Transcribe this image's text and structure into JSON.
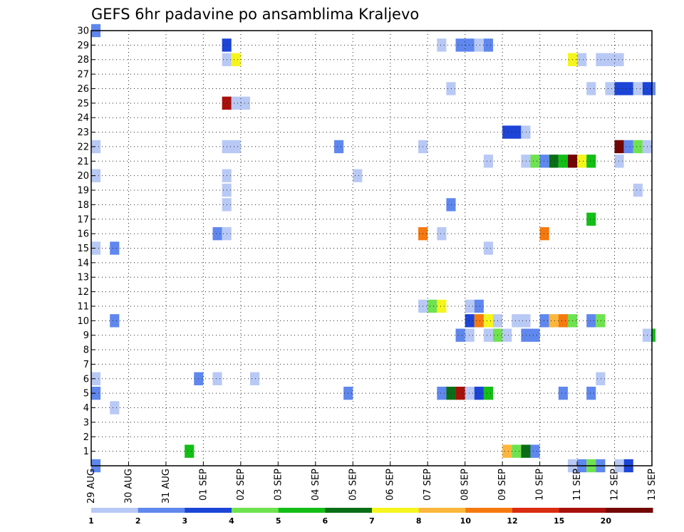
{
  "chart_data": {
    "type": "heatmap",
    "title": "GEFS 6hr padavine po ansamblima Kraljevo",
    "xlabel": "",
    "ylabel": "",
    "x_tick_labels": [
      "29 AUG",
      "30 AUG",
      "31 AUG",
      "01 SEP",
      "02 SEP",
      "03 SEP",
      "04 SEP",
      "05 SEP",
      "06 SEP",
      "07 SEP",
      "08 SEP",
      "09 SEP",
      "10 SEP",
      "11 SEP",
      "12 SEP",
      "13 SEP"
    ],
    "x_range_days": [
      0,
      15
    ],
    "y_tick_labels": [
      "1",
      "2",
      "3",
      "4",
      "5",
      "6",
      "7",
      "8",
      "9",
      "10",
      "11",
      "12",
      "13",
      "14",
      "15",
      "16",
      "17",
      "18",
      "19",
      "20",
      "21",
      "22",
      "23",
      "24",
      "25",
      "26",
      "27",
      "28",
      "29",
      "30"
    ],
    "y_range": [
      0,
      30
    ],
    "grid": true,
    "legend_placement": "bottom",
    "colorbar": {
      "labels": [
        "1",
        "2",
        "3",
        "4",
        "5",
        "6",
        "7",
        "8",
        "10",
        "12",
        "15",
        "20"
      ],
      "colors": [
        "#b9c9f5",
        "#5f87ee",
        "#1c44d6",
        "#6fe24f",
        "#13be16",
        "#0a6e16",
        "#f5f51d",
        "#fbb73c",
        "#f5790f",
        "#d92c10",
        "#a7100b",
        "#730505"
      ]
    },
    "cell_width_steps": 0.25,
    "cells": [
      {
        "m": 30,
        "t": 0.0,
        "n": 1,
        "c": 1
      },
      {
        "m": 29,
        "t": 3.5,
        "n": 1,
        "c": 2
      },
      {
        "m": 29,
        "t": 9.25,
        "n": 1,
        "c": 0
      },
      {
        "m": 29,
        "t": 9.75,
        "n": 2,
        "c": 1
      },
      {
        "m": 29,
        "t": 10.25,
        "n": 1,
        "c": 0
      },
      {
        "m": 29,
        "t": 10.5,
        "n": 1,
        "c": 1
      },
      {
        "m": 28,
        "t": 3.5,
        "n": 1,
        "c": 0
      },
      {
        "m": 28,
        "t": 3.75,
        "n": 1,
        "c": 6
      },
      {
        "m": 28,
        "t": 12.75,
        "n": 1,
        "c": 6
      },
      {
        "m": 28,
        "t": 13.0,
        "n": 1,
        "c": 0
      },
      {
        "m": 28,
        "t": 13.5,
        "n": 3,
        "c": 0
      },
      {
        "m": 26,
        "t": 9.5,
        "n": 1,
        "c": 0
      },
      {
        "m": 26,
        "t": 13.25,
        "n": 1,
        "c": 0
      },
      {
        "m": 26,
        "t": 13.75,
        "n": 1,
        "c": 0
      },
      {
        "m": 26,
        "t": 14.0,
        "n": 2,
        "c": 2
      },
      {
        "m": 26,
        "t": 14.5,
        "n": 1,
        "c": 0
      },
      {
        "m": 26,
        "t": 14.75,
        "n": 1,
        "c": 2
      },
      {
        "m": 26,
        "t": 15.0,
        "n": 1,
        "c": 1
      },
      {
        "m": 25,
        "t": 3.5,
        "n": 1,
        "c": 10
      },
      {
        "m": 25,
        "t": 3.75,
        "n": 2,
        "c": 0
      },
      {
        "m": 23,
        "t": 11.0,
        "n": 2,
        "c": 2
      },
      {
        "m": 23,
        "t": 11.5,
        "n": 1,
        "c": 0
      },
      {
        "m": 22,
        "t": 0.0,
        "n": 1,
        "c": 0
      },
      {
        "m": 22,
        "t": 3.5,
        "n": 2,
        "c": 0
      },
      {
        "m": 22,
        "t": 6.5,
        "n": 1,
        "c": 1
      },
      {
        "m": 22,
        "t": 8.75,
        "n": 1,
        "c": 0
      },
      {
        "m": 22,
        "t": 14.0,
        "n": 1,
        "c": 11
      },
      {
        "m": 22,
        "t": 14.25,
        "n": 1,
        "c": 1
      },
      {
        "m": 22,
        "t": 14.5,
        "n": 1,
        "c": 3
      },
      {
        "m": 22,
        "t": 14.75,
        "n": 1,
        "c": 0
      },
      {
        "m": 21,
        "t": 10.5,
        "n": 1,
        "c": 0
      },
      {
        "m": 21,
        "t": 11.5,
        "n": 1,
        "c": 0
      },
      {
        "m": 21,
        "t": 11.75,
        "n": 1,
        "c": 3
      },
      {
        "m": 21,
        "t": 12.0,
        "n": 1,
        "c": 1
      },
      {
        "m": 21,
        "t": 12.25,
        "n": 1,
        "c": 5
      },
      {
        "m": 21,
        "t": 12.5,
        "n": 1,
        "c": 4
      },
      {
        "m": 21,
        "t": 12.75,
        "n": 1,
        "c": 11
      },
      {
        "m": 21,
        "t": 13.0,
        "n": 1,
        "c": 6
      },
      {
        "m": 21,
        "t": 13.25,
        "n": 1,
        "c": 4
      },
      {
        "m": 21,
        "t": 14.0,
        "n": 1,
        "c": 0
      },
      {
        "m": 20,
        "t": 0.0,
        "n": 1,
        "c": 0
      },
      {
        "m": 20,
        "t": 3.5,
        "n": 1,
        "c": 0
      },
      {
        "m": 20,
        "t": 7.0,
        "n": 1,
        "c": 0
      },
      {
        "m": 19,
        "t": 3.5,
        "n": 1,
        "c": 0
      },
      {
        "m": 19,
        "t": 14.5,
        "n": 1,
        "c": 0
      },
      {
        "m": 18,
        "t": 3.5,
        "n": 1,
        "c": 0
      },
      {
        "m": 18,
        "t": 9.5,
        "n": 1,
        "c": 1
      },
      {
        "m": 17,
        "t": 13.25,
        "n": 1,
        "c": 4
      },
      {
        "m": 16,
        "t": 3.25,
        "n": 1,
        "c": 1
      },
      {
        "m": 16,
        "t": 3.5,
        "n": 1,
        "c": 0
      },
      {
        "m": 16,
        "t": 8.75,
        "n": 1,
        "c": 8
      },
      {
        "m": 16,
        "t": 9.25,
        "n": 1,
        "c": 0
      },
      {
        "m": 16,
        "t": 12.0,
        "n": 1,
        "c": 8
      },
      {
        "m": 15,
        "t": 0.0,
        "n": 1,
        "c": 0
      },
      {
        "m": 15,
        "t": 0.5,
        "n": 1,
        "c": 1
      },
      {
        "m": 15,
        "t": 10.5,
        "n": 1,
        "c": 0
      },
      {
        "m": 11,
        "t": 10.0,
        "n": 1,
        "c": 0
      },
      {
        "m": 11,
        "t": 10.25,
        "n": 1,
        "c": 1
      },
      {
        "m": 11,
        "t": 8.75,
        "n": 1,
        "c": 0
      },
      {
        "m": 11,
        "t": 9.0,
        "n": 1,
        "c": 3
      },
      {
        "m": 11,
        "t": 9.25,
        "n": 1,
        "c": 6
      },
      {
        "m": 10,
        "t": 0.5,
        "n": 1,
        "c": 1
      },
      {
        "m": 10,
        "t": 10.0,
        "n": 1,
        "c": 2
      },
      {
        "m": 10,
        "t": 10.25,
        "n": 1,
        "c": 8
      },
      {
        "m": 10,
        "t": 10.5,
        "n": 1,
        "c": 6
      },
      {
        "m": 10,
        "t": 10.75,
        "n": 1,
        "c": 0
      },
      {
        "m": 10,
        "t": 11.25,
        "n": 2,
        "c": 0
      },
      {
        "m": 10,
        "t": 12.0,
        "n": 1,
        "c": 1
      },
      {
        "m": 10,
        "t": 12.25,
        "n": 1,
        "c": 7
      },
      {
        "m": 10,
        "t": 12.5,
        "n": 1,
        "c": 8
      },
      {
        "m": 10,
        "t": 12.75,
        "n": 1,
        "c": 3
      },
      {
        "m": 10,
        "t": 13.25,
        "n": 1,
        "c": 1
      },
      {
        "m": 10,
        "t": 13.5,
        "n": 1,
        "c": 3
      },
      {
        "m": 9,
        "t": 9.75,
        "n": 1,
        "c": 1
      },
      {
        "m": 9,
        "t": 10.0,
        "n": 1,
        "c": 0
      },
      {
        "m": 9,
        "t": 10.5,
        "n": 1,
        "c": 0
      },
      {
        "m": 9,
        "t": 10.75,
        "n": 1,
        "c": 3
      },
      {
        "m": 9,
        "t": 11.0,
        "n": 1,
        "c": 0
      },
      {
        "m": 9,
        "t": 11.5,
        "n": 2,
        "c": 1
      },
      {
        "m": 9,
        "t": 14.75,
        "n": 1,
        "c": 0
      },
      {
        "m": 9,
        "t": 15.0,
        "n": 1,
        "c": 4
      },
      {
        "m": 6,
        "t": 0.0,
        "n": 1,
        "c": 0
      },
      {
        "m": 6,
        "t": 2.75,
        "n": 1,
        "c": 1
      },
      {
        "m": 6,
        "t": 3.25,
        "n": 1,
        "c": 0
      },
      {
        "m": 6,
        "t": 4.25,
        "n": 1,
        "c": 0
      },
      {
        "m": 6,
        "t": 13.5,
        "n": 1,
        "c": 0
      },
      {
        "m": 5,
        "t": 0.0,
        "n": 1,
        "c": 1
      },
      {
        "m": 5,
        "t": 6.75,
        "n": 1,
        "c": 1
      },
      {
        "m": 5,
        "t": 9.25,
        "n": 1,
        "c": 1
      },
      {
        "m": 5,
        "t": 9.5,
        "n": 1,
        "c": 5
      },
      {
        "m": 5,
        "t": 9.75,
        "n": 1,
        "c": 10
      },
      {
        "m": 5,
        "t": 10.0,
        "n": 1,
        "c": 0
      },
      {
        "m": 5,
        "t": 10.25,
        "n": 1,
        "c": 2
      },
      {
        "m": 5,
        "t": 10.5,
        "n": 1,
        "c": 4
      },
      {
        "m": 5,
        "t": 12.5,
        "n": 1,
        "c": 1
      },
      {
        "m": 5,
        "t": 13.25,
        "n": 1,
        "c": 1
      },
      {
        "m": 4,
        "t": 0.5,
        "n": 1,
        "c": 0
      },
      {
        "m": 1,
        "t": 2.5,
        "n": 1,
        "c": 4
      },
      {
        "m": 1,
        "t": 11.0,
        "n": 1,
        "c": 7
      },
      {
        "m": 1,
        "t": 11.25,
        "n": 1,
        "c": 3
      },
      {
        "m": 1,
        "t": 11.5,
        "n": 1,
        "c": 5
      },
      {
        "m": 1,
        "t": 11.75,
        "n": 1,
        "c": 1
      },
      {
        "m": 0,
        "t": 0.0,
        "n": 1,
        "c": 1
      },
      {
        "m": 0,
        "t": 12.75,
        "n": 1,
        "c": 0
      },
      {
        "m": 0,
        "t": 13.0,
        "n": 1,
        "c": 1
      },
      {
        "m": 0,
        "t": 13.25,
        "n": 1,
        "c": 3
      },
      {
        "m": 0,
        "t": 13.5,
        "n": 1,
        "c": 1
      },
      {
        "m": 0,
        "t": 14.0,
        "n": 1,
        "c": 0
      },
      {
        "m": 0,
        "t": 14.25,
        "n": 1,
        "c": 2
      }
    ]
  }
}
